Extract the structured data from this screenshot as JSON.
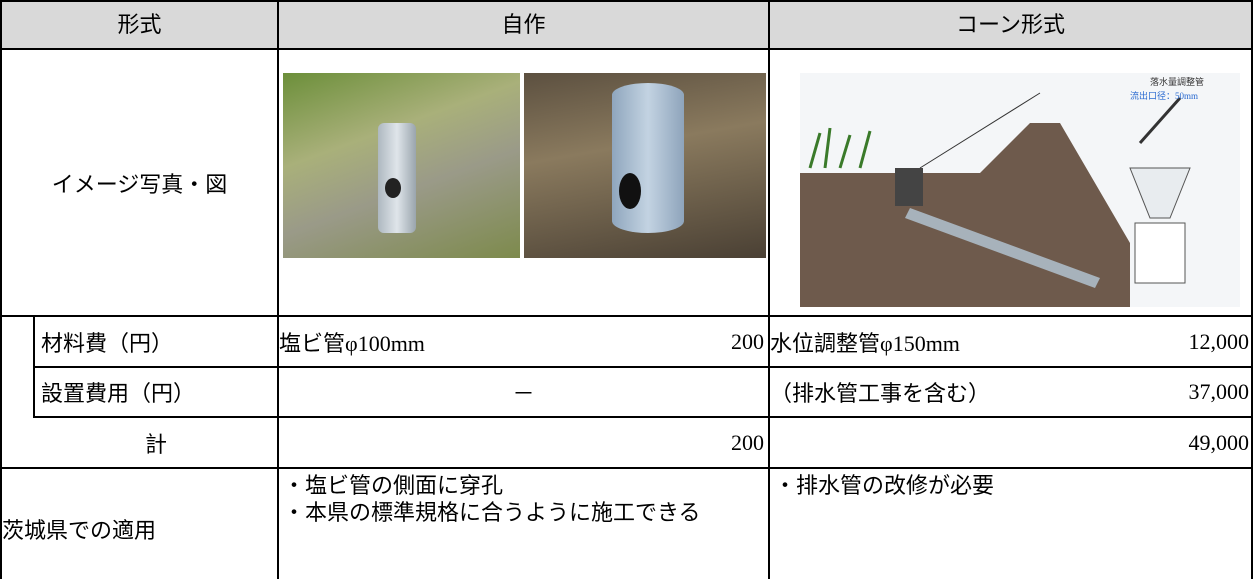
{
  "table": {
    "header": [
      "形式",
      "自作",
      "コーン形式"
    ],
    "image_row": {
      "label": "イメージ写真・図",
      "diagram_labels": [
        "落水量調整管",
        "流出口径：50mm"
      ]
    },
    "rows": [
      [
        "材料費（円）",
        "塩ビ管φ100mm",
        "200",
        "水位調整管φ150mm",
        "12,000"
      ],
      [
        "設置費用（円）",
        "－",
        "（排水管工事を含む）",
        "37,000"
      ],
      [
        "計",
        "200",
        "49,000"
      ],
      [
        "茨城県での適用",
        [
          "・塩ビ管の側面に穿孔",
          "・本県の標準規格に合うように施工できる"
        ],
        [
          "・排水管の改修が必要"
        ]
      ]
    ]
  }
}
